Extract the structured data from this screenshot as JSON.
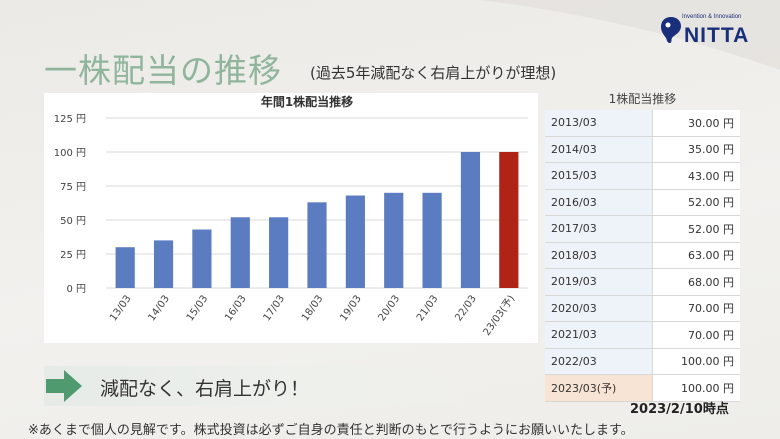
{
  "header": {
    "title": "一株配当の推移",
    "subtitle": "(過去5年減配なく右肩上がりが理想)"
  },
  "logo": {
    "tagline": "Invention & Innovation",
    "name": "NITTA",
    "icon": "nitta-logo-mark-icon",
    "color": "#1a2f7a"
  },
  "chart_data": {
    "type": "bar",
    "title": "年間1株配当推移",
    "categories": [
      "13/03",
      "14/03",
      "15/03",
      "16/03",
      "17/03",
      "18/03",
      "19/03",
      "20/03",
      "21/03",
      "22/03",
      "23/03(予)"
    ],
    "values": [
      30,
      35,
      43,
      52,
      52,
      63,
      68,
      70,
      70,
      100,
      100
    ],
    "ylim": [
      0,
      125
    ],
    "yticks": [
      0,
      25,
      50,
      75,
      100,
      125
    ],
    "ytick_labels": [
      "0 円",
      "25 円",
      "50 円",
      "75 円",
      "100 円",
      "125 円"
    ],
    "grid": true,
    "bar_color": "#5b7cc0",
    "forecast_color": "#b02418",
    "forecast_index": 10
  },
  "table": {
    "title": "1株配当推移",
    "rows": [
      {
        "year": "2013/03",
        "value": "30.00 円"
      },
      {
        "year": "2014/03",
        "value": "35.00 円"
      },
      {
        "year": "2015/03",
        "value": "43.00 円"
      },
      {
        "year": "2016/03",
        "value": "52.00 円"
      },
      {
        "year": "2017/03",
        "value": "52.00 円"
      },
      {
        "year": "2018/03",
        "value": "63.00 円"
      },
      {
        "year": "2019/03",
        "value": "68.00 円"
      },
      {
        "year": "2020/03",
        "value": "70.00 円"
      },
      {
        "year": "2021/03",
        "value": "70.00 円"
      },
      {
        "year": "2022/03",
        "value": "100.00 円"
      },
      {
        "year": "2023/03(予)",
        "value": "100.00 円"
      }
    ]
  },
  "callout": {
    "icon": "right-arrow-icon",
    "text": "減配なく、右肩上がり！"
  },
  "asof": "2023/2/10時点",
  "footnote": "※あくまで個人の見解です。株式投資は必ずご自身の責任と判断のもとで行うようにお願いいたします。",
  "colors": {
    "title_green": "#8fb59d",
    "arrow_green": "#4f9a6e"
  }
}
